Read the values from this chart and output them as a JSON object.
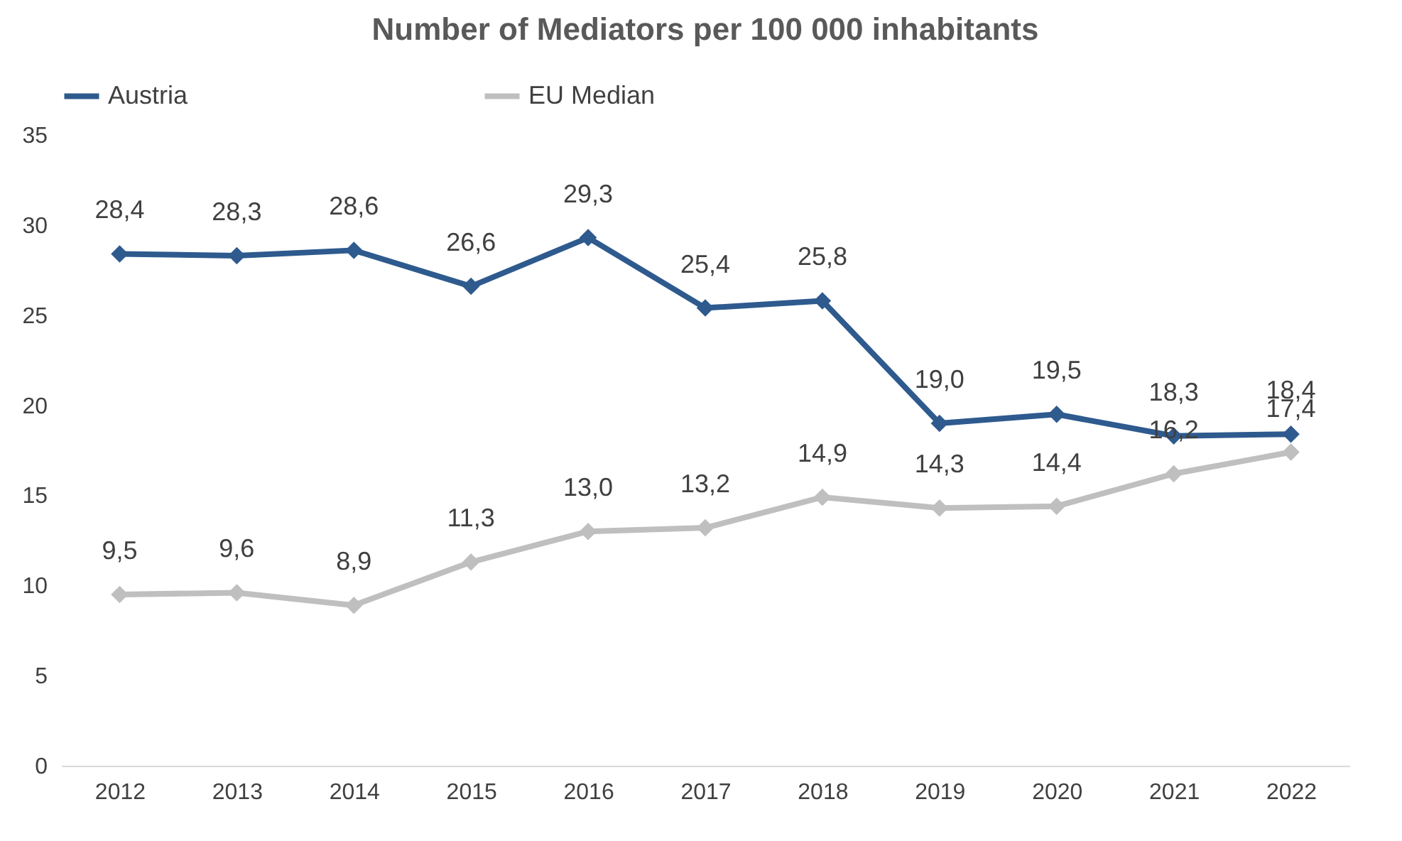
{
  "chart_data": {
    "type": "line",
    "title": "Number of Mediators per 100 000 inhabitants",
    "categories": [
      "2012",
      "2013",
      "2014",
      "2015",
      "2016",
      "2017",
      "2018",
      "2019",
      "2020",
      "2021",
      "2022"
    ],
    "series": [
      {
        "name": "Austria",
        "color": "#2e5a8e",
        "values": [
          28.4,
          28.3,
          28.6,
          26.6,
          29.3,
          25.4,
          25.8,
          19.0,
          19.5,
          18.3,
          18.4
        ],
        "value_labels": [
          "28,4",
          "28,3",
          "28,6",
          "26,6",
          "29,3",
          "25,4",
          "25,8",
          "19,0",
          "19,5",
          "18,3",
          "18,4"
        ]
      },
      {
        "name": "EU Median",
        "color": "#bfbfbf",
        "values": [
          9.5,
          9.6,
          8.9,
          11.3,
          13.0,
          13.2,
          14.9,
          14.3,
          14.4,
          16.2,
          17.4
        ],
        "value_labels": [
          "9,5",
          "9,6",
          "8,9",
          "11,3",
          "13,0",
          "13,2",
          "14,9",
          "14,3",
          "14,4",
          "16,2",
          "17,4"
        ]
      }
    ],
    "ylim": [
      0,
      35
    ],
    "yticks": [
      0,
      5,
      10,
      15,
      20,
      25,
      30,
      35
    ],
    "grid": false,
    "legend": "top",
    "marker": "diamond"
  }
}
